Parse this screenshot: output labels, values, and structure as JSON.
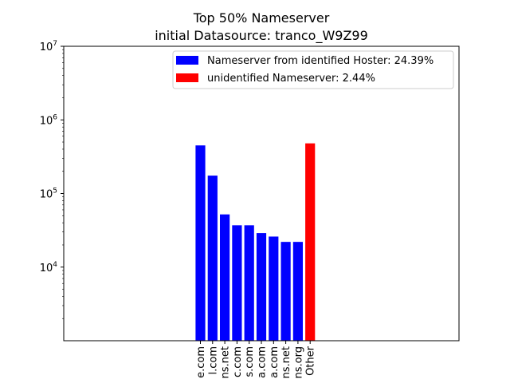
{
  "chart_data": {
    "type": "bar",
    "title": "Top 50% Nameserver",
    "subtitle": "initial Datasource: tranco_W9Z99",
    "xlabel": "",
    "ylabel": "",
    "yscale": "log",
    "ylim": [
      1000,
      10000000
    ],
    "y_ticks": [
      {
        "value": 10000,
        "base": "10",
        "exp": "4"
      },
      {
        "value": 100000,
        "base": "10",
        "exp": "5"
      },
      {
        "value": 1000000,
        "base": "10",
        "exp": "6"
      },
      {
        "value": 10000000,
        "base": "10",
        "exp": "7"
      }
    ],
    "categories": [
      "e.com",
      "l.com",
      "ns.net",
      "c.com",
      "s.com",
      "a.com",
      "a.com",
      "ns.net",
      "ns.org",
      "Other"
    ],
    "values": [
      450000,
      175000,
      52000,
      37000,
      37000,
      29000,
      26000,
      22000,
      22000,
      480000
    ],
    "bar_colors": [
      "#0000ff",
      "#0000ff",
      "#0000ff",
      "#0000ff",
      "#0000ff",
      "#0000ff",
      "#0000ff",
      "#0000ff",
      "#0000ff",
      "#ff0000"
    ],
    "legend": {
      "position": "top-right",
      "entries": [
        {
          "label": "Nameserver from identified Hoster: 24.39%",
          "color": "#0000ff"
        },
        {
          "label": "unidentified Nameserver: 2.44%",
          "color": "#ff0000"
        }
      ]
    },
    "grid": false
  }
}
